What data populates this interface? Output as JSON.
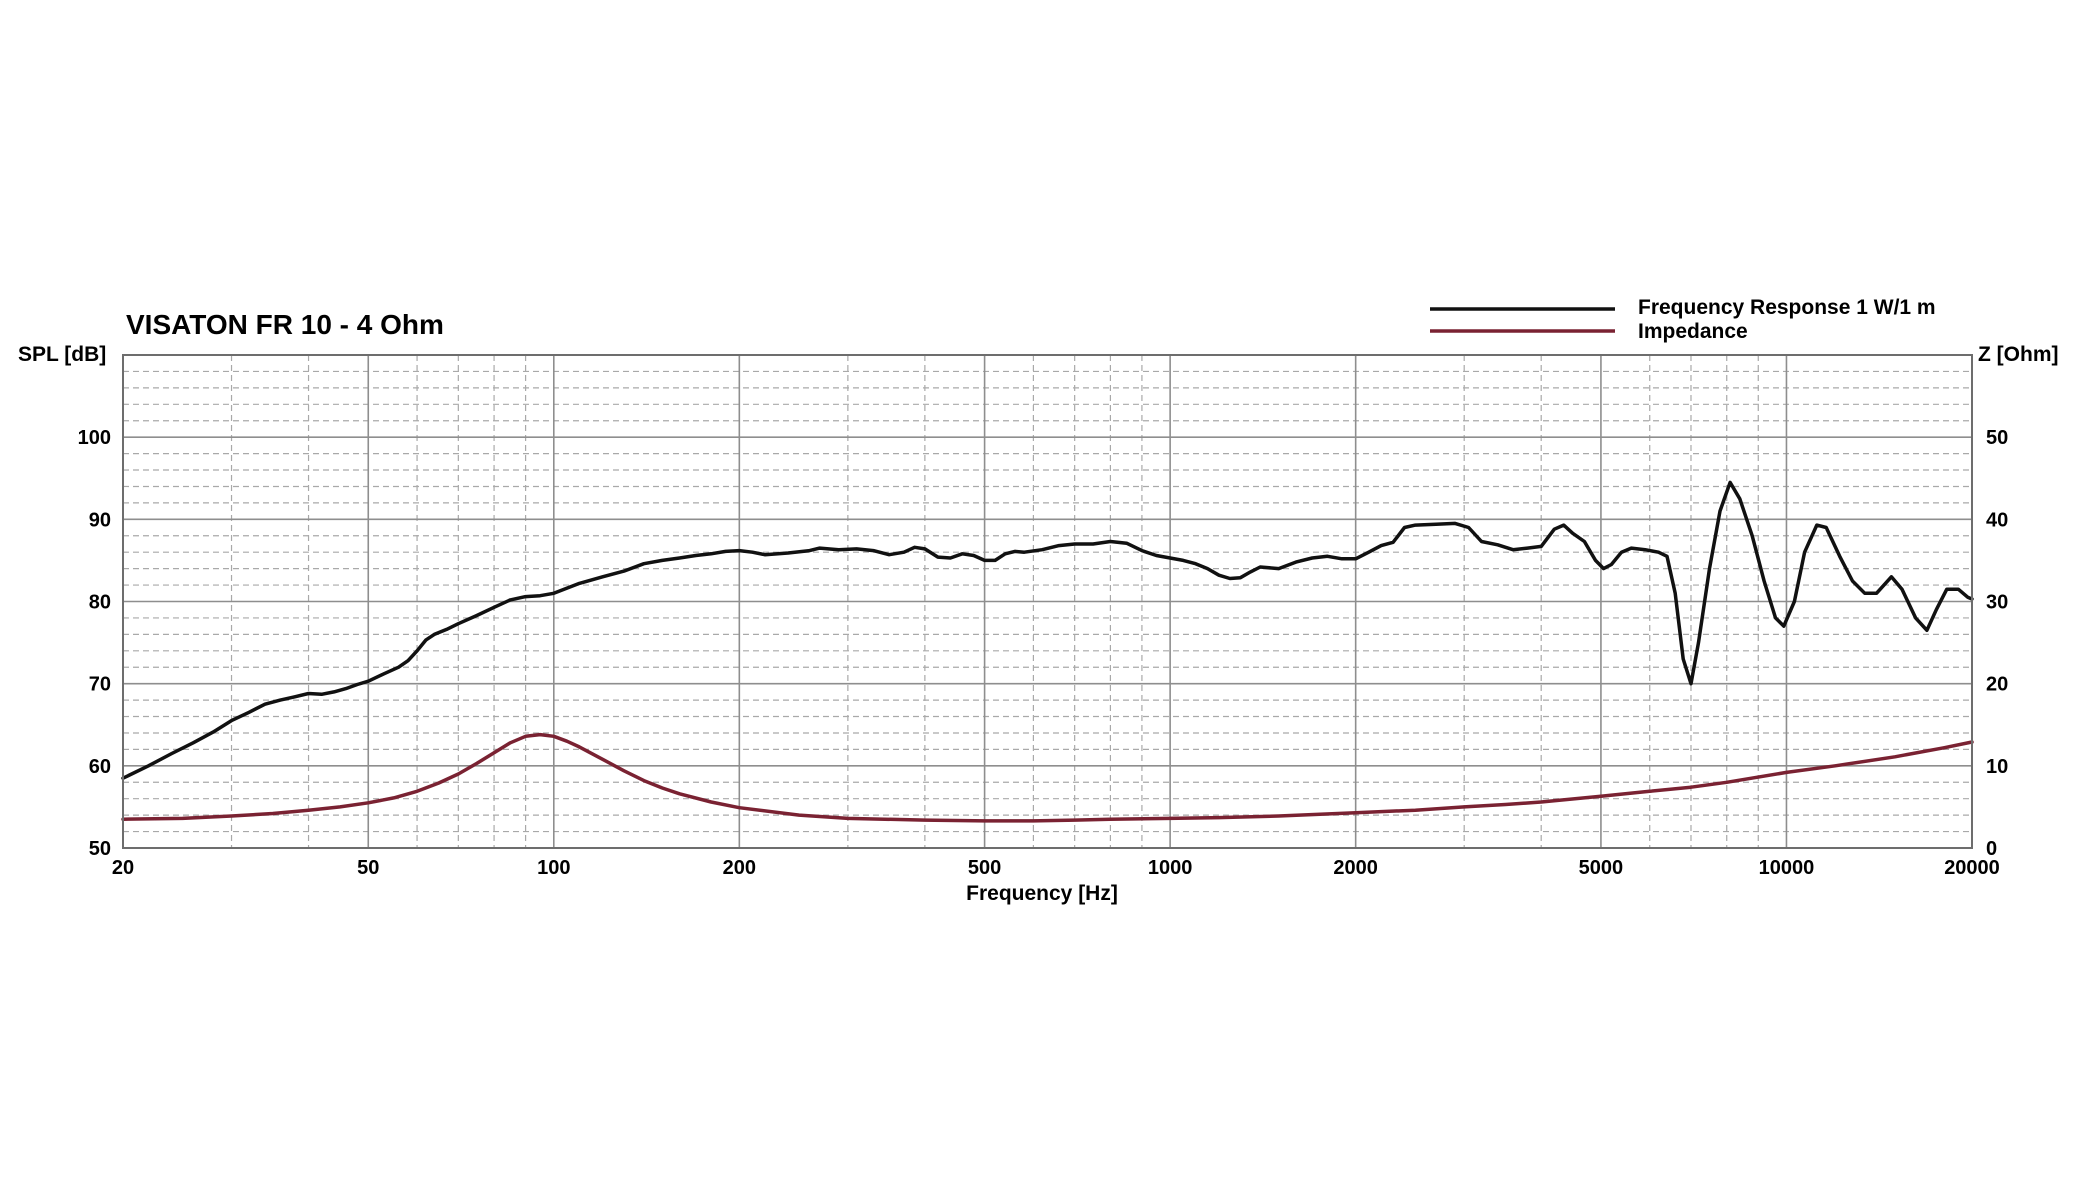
{
  "chart_data": {
    "type": "line",
    "title": "VISATON FR 10 - 4 Ohm",
    "xlabel": "Frequency [Hz]",
    "ylabel_left": "SPL [dB]",
    "ylabel_right": "Z [Ohm]",
    "x_scale": "log",
    "xlim": [
      20,
      20000
    ],
    "ylim_left": [
      50,
      110
    ],
    "ylim_right": [
      0,
      60
    ],
    "x_ticks": [
      20,
      50,
      100,
      200,
      500,
      1000,
      2000,
      5000,
      10000,
      20000
    ],
    "x_tick_labels": [
      "20",
      "50",
      "100",
      "200",
      "500",
      "1000",
      "2000",
      "5000",
      "10000",
      "20000"
    ],
    "y_left_ticks": [
      50,
      60,
      70,
      80,
      90,
      100
    ],
    "y_left_tick_labels": [
      "50",
      "60",
      "70",
      "80",
      "90",
      "100"
    ],
    "y_right_ticks": [
      0,
      10,
      20,
      30,
      40,
      50
    ],
    "y_right_tick_labels": [
      "0",
      "10",
      "20",
      "30",
      "40",
      "50"
    ],
    "grid": true,
    "legend_position": "top-right",
    "series": [
      {
        "name": "Frequency Response 1 W/1 m",
        "axis": "left",
        "color": "#111111",
        "points": [
          [
            20,
            58.5
          ],
          [
            22,
            60
          ],
          [
            24,
            61.5
          ],
          [
            26,
            62.8
          ],
          [
            28,
            64.1
          ],
          [
            30,
            65.5
          ],
          [
            32,
            66.5
          ],
          [
            34,
            67.5
          ],
          [
            36,
            68
          ],
          [
            38,
            68.4
          ],
          [
            40,
            68.8
          ],
          [
            42,
            68.7
          ],
          [
            44,
            69
          ],
          [
            46,
            69.4
          ],
          [
            48,
            69.9
          ],
          [
            50,
            70.3
          ],
          [
            53,
            71.2
          ],
          [
            56,
            72
          ],
          [
            58,
            72.8
          ],
          [
            60,
            74
          ],
          [
            62,
            75.3
          ],
          [
            64,
            76
          ],
          [
            67,
            76.6
          ],
          [
            70,
            77.3
          ],
          [
            75,
            78.3
          ],
          [
            80,
            79.3
          ],
          [
            85,
            80.2
          ],
          [
            90,
            80.6
          ],
          [
            95,
            80.7
          ],
          [
            100,
            81
          ],
          [
            110,
            82.2
          ],
          [
            120,
            83
          ],
          [
            130,
            83.7
          ],
          [
            140,
            84.6
          ],
          [
            150,
            85
          ],
          [
            160,
            85.3
          ],
          [
            170,
            85.6
          ],
          [
            180,
            85.8
          ],
          [
            190,
            86.1
          ],
          [
            200,
            86.2
          ],
          [
            210,
            86
          ],
          [
            220,
            85.7
          ],
          [
            240,
            85.9
          ],
          [
            260,
            86.2
          ],
          [
            270,
            86.5
          ],
          [
            290,
            86.3
          ],
          [
            310,
            86.4
          ],
          [
            330,
            86.2
          ],
          [
            350,
            85.7
          ],
          [
            370,
            86
          ],
          [
            385,
            86.6
          ],
          [
            400,
            86.4
          ],
          [
            420,
            85.4
          ],
          [
            440,
            85.3
          ],
          [
            460,
            85.8
          ],
          [
            480,
            85.6
          ],
          [
            500,
            85
          ],
          [
            520,
            85
          ],
          [
            540,
            85.8
          ],
          [
            560,
            86.1
          ],
          [
            580,
            86
          ],
          [
            620,
            86.3
          ],
          [
            660,
            86.8
          ],
          [
            700,
            87
          ],
          [
            750,
            87
          ],
          [
            800,
            87.3
          ],
          [
            850,
            87.1
          ],
          [
            900,
            86.2
          ],
          [
            950,
            85.6
          ],
          [
            1000,
            85.3
          ],
          [
            1050,
            85
          ],
          [
            1100,
            84.6
          ],
          [
            1150,
            84
          ],
          [
            1200,
            83.2
          ],
          [
            1250,
            82.8
          ],
          [
            1300,
            82.9
          ],
          [
            1350,
            83.6
          ],
          [
            1400,
            84.2
          ],
          [
            1500,
            84
          ],
          [
            1600,
            84.8
          ],
          [
            1700,
            85.3
          ],
          [
            1800,
            85.5
          ],
          [
            1900,
            85.2
          ],
          [
            2000,
            85.2
          ],
          [
            2100,
            86
          ],
          [
            2200,
            86.8
          ],
          [
            2300,
            87.2
          ],
          [
            2400,
            89
          ],
          [
            2500,
            89.3
          ],
          [
            2700,
            89.4
          ],
          [
            2900,
            89.5
          ],
          [
            3050,
            89
          ],
          [
            3200,
            87.3
          ],
          [
            3400,
            86.9
          ],
          [
            3600,
            86.3
          ],
          [
            3800,
            86.5
          ],
          [
            4000,
            86.7
          ],
          [
            4200,
            88.8
          ],
          [
            4350,
            89.3
          ],
          [
            4500,
            88.3
          ],
          [
            4700,
            87.3
          ],
          [
            4900,
            85
          ],
          [
            5050,
            84
          ],
          [
            5200,
            84.5
          ],
          [
            5400,
            86
          ],
          [
            5600,
            86.5
          ],
          [
            5900,
            86.3
          ],
          [
            6200,
            86
          ],
          [
            6400,
            85.5
          ],
          [
            6600,
            81
          ],
          [
            6800,
            73
          ],
          [
            7000,
            70
          ],
          [
            7200,
            75
          ],
          [
            7500,
            84
          ],
          [
            7800,
            91
          ],
          [
            8100,
            94.5
          ],
          [
            8400,
            92.5
          ],
          [
            8800,
            88
          ],
          [
            9200,
            82.5
          ],
          [
            9600,
            78
          ],
          [
            9900,
            77
          ],
          [
            10300,
            80
          ],
          [
            10700,
            86
          ],
          [
            11200,
            89.3
          ],
          [
            11600,
            89
          ],
          [
            12200,
            85.5
          ],
          [
            12800,
            82.5
          ],
          [
            13400,
            81
          ],
          [
            14000,
            81
          ],
          [
            14800,
            83
          ],
          [
            15400,
            81.5
          ],
          [
            16200,
            78
          ],
          [
            16900,
            76.5
          ],
          [
            17500,
            79
          ],
          [
            18200,
            81.5
          ],
          [
            19000,
            81.5
          ],
          [
            19700,
            80.5
          ],
          [
            20000,
            80.3
          ]
        ]
      },
      {
        "name": "Impedance",
        "axis": "right",
        "color": "#7a2232",
        "points": [
          [
            20,
            3.5
          ],
          [
            25,
            3.6
          ],
          [
            30,
            3.9
          ],
          [
            35,
            4.2
          ],
          [
            40,
            4.6
          ],
          [
            45,
            5
          ],
          [
            50,
            5.5
          ],
          [
            55,
            6.1
          ],
          [
            60,
            6.9
          ],
          [
            65,
            7.9
          ],
          [
            70,
            9
          ],
          [
            75,
            10.3
          ],
          [
            80,
            11.6
          ],
          [
            85,
            12.8
          ],
          [
            90,
            13.6
          ],
          [
            95,
            13.8
          ],
          [
            100,
            13.6
          ],
          [
            105,
            13
          ],
          [
            110,
            12.3
          ],
          [
            120,
            10.8
          ],
          [
            130,
            9.4
          ],
          [
            140,
            8.2
          ],
          [
            150,
            7.3
          ],
          [
            160,
            6.6
          ],
          [
            180,
            5.6
          ],
          [
            200,
            4.9
          ],
          [
            250,
            4
          ],
          [
            300,
            3.6
          ],
          [
            400,
            3.4
          ],
          [
            500,
            3.3
          ],
          [
            600,
            3.3
          ],
          [
            700,
            3.4
          ],
          [
            800,
            3.5
          ],
          [
            1000,
            3.6
          ],
          [
            1200,
            3.7
          ],
          [
            1500,
            3.9
          ],
          [
            2000,
            4.3
          ],
          [
            2500,
            4.6
          ],
          [
            3000,
            5
          ],
          [
            3500,
            5.3
          ],
          [
            4000,
            5.6
          ],
          [
            5000,
            6.3
          ],
          [
            6000,
            6.9
          ],
          [
            7000,
            7.4
          ],
          [
            8000,
            8
          ],
          [
            10000,
            9.2
          ],
          [
            12000,
            10
          ],
          [
            15000,
            11.1
          ],
          [
            18000,
            12.2
          ],
          [
            20000,
            12.9
          ]
        ]
      }
    ]
  }
}
